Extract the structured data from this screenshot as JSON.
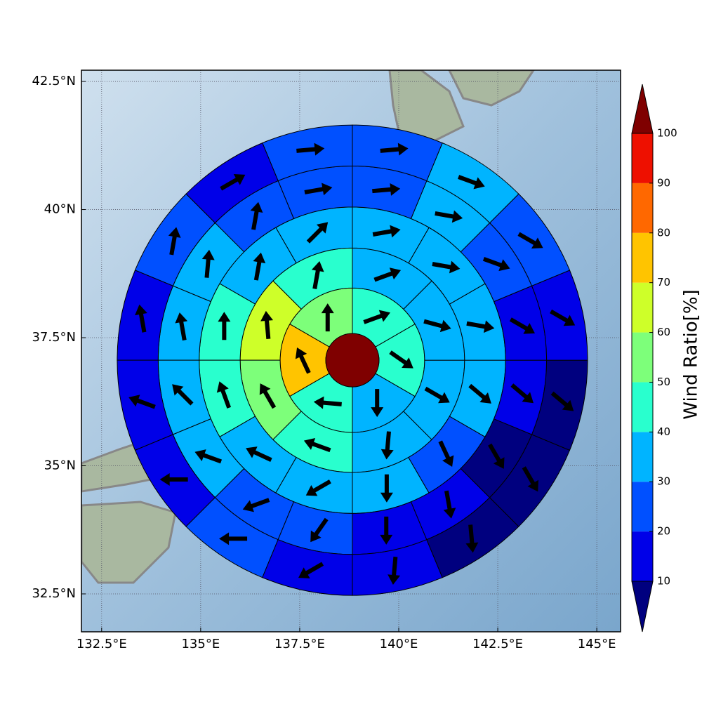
{
  "chart_data": {
    "type": "polar_sectors",
    "colorbar_label": "Wind Ratio[%]",
    "xlim": [
      131.99,
      145.6
    ],
    "ylim": [
      31.76,
      42.72
    ],
    "xticks": [
      {
        "value": 132.5,
        "label": "132.5°E"
      },
      {
        "value": 135,
        "label": "135°E"
      },
      {
        "value": 137.5,
        "label": "137.5°E"
      },
      {
        "value": 140,
        "label": "140°E"
      },
      {
        "value": 142.5,
        "label": "142.5°E"
      },
      {
        "value": 145,
        "label": "145°E"
      }
    ],
    "yticks": [
      {
        "value": 32.5,
        "label": "32.5°N"
      },
      {
        "value": 35,
        "label": "35°N"
      },
      {
        "value": 37.5,
        "label": "37.5°N"
      },
      {
        "value": 40,
        "label": "40°N"
      },
      {
        "value": 42.5,
        "label": "42.5°N"
      }
    ],
    "grid": true,
    "levels": [
      10,
      20,
      30,
      40,
      50,
      60,
      70,
      80,
      90,
      100
    ],
    "colors": [
      "#00007f",
      "#0000e8",
      "#0050ff",
      "#00b4ff",
      "#29ffce",
      "#7dff7a",
      "#ceff29",
      "#ffc400",
      "#ff6800",
      "#ee1000",
      "#7f0000"
    ],
    "center": {
      "lon": 138.83,
      "lat": 37.06,
      "value": 105
    },
    "ring_edges": [
      0.52,
      1.41,
      2.19,
      2.99,
      3.79,
      4.59
    ],
    "rings": [
      {
        "start_angle": 30,
        "values": [
          45,
          55,
          75,
          45,
          35,
          45
        ],
        "directions": [
          20,
          90,
          115,
          175,
          270,
          325
        ]
      },
      {
        "start_angle": 90,
        "values": [
          45,
          65,
          55,
          45,
          35,
          35,
          35,
          35
        ],
        "directions": [
          80,
          95,
          120,
          160,
          265,
          330,
          345,
          20
        ]
      },
      {
        "start_angle": 90,
        "values": [
          35,
          35,
          45,
          45,
          35,
          35,
          35,
          25,
          35,
          35,
          35,
          35
        ],
        "directions": [
          45,
          80,
          90,
          110,
          155,
          210,
          270,
          295,
          320,
          350,
          350,
          10
        ]
      },
      {
        "start_angle": 90,
        "values": [
          25,
          25,
          35,
          35,
          35,
          35,
          25,
          25,
          15,
          15,
          5,
          15,
          15,
          25,
          35,
          25
        ],
        "directions": [
          10,
          80,
          85,
          100,
          135,
          160,
          200,
          235,
          270,
          280,
          300,
          320,
          330,
          340,
          350,
          5
        ]
      },
      {
        "start_angle": 90,
        "values": [
          25,
          15,
          25,
          15,
          15,
          15,
          25,
          15,
          15,
          5,
          5,
          5,
          15,
          25,
          35,
          25
        ],
        "directions": [
          5,
          30,
          80,
          100,
          160,
          180,
          180,
          210,
          265,
          275,
          300,
          320,
          330,
          330,
          340,
          5
        ]
      }
    ]
  }
}
